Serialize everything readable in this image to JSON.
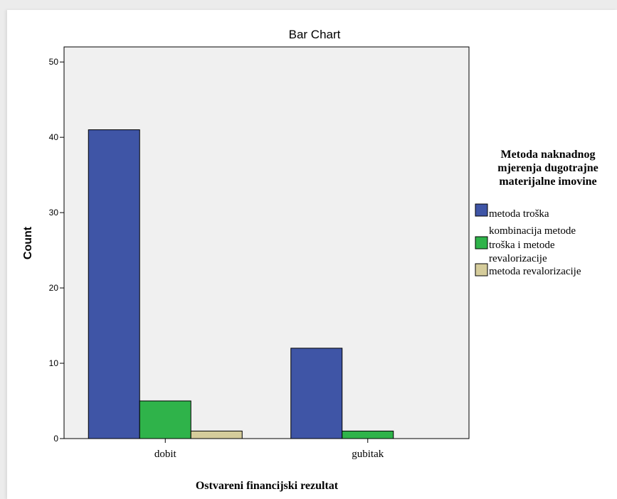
{
  "chart_data": {
    "type": "bar",
    "title": "Bar Chart",
    "xlabel": "Ostvareni financijski rezultat",
    "ylabel": "Count",
    "categories": [
      "dobit",
      "gubitak"
    ],
    "ylim": [
      0,
      52
    ],
    "yticks": [
      0,
      10,
      20,
      30,
      40,
      50
    ],
    "grid": false,
    "legend_position": "right",
    "legend_title": [
      "Metoda naknadnog",
      "mjerenja dugotrajne",
      "materijalne imovine"
    ],
    "series": [
      {
        "name": "metoda troška",
        "name_lines": [
          "metoda troška"
        ],
        "color": "#3f55a6",
        "values": [
          41,
          12
        ]
      },
      {
        "name": "kombinacija metode troška i metode revalorizacije",
        "name_lines": [
          "kombinacija metode",
          "troška i metode",
          "revalorizacije"
        ],
        "color": "#2fb34a",
        "values": [
          5,
          1
        ]
      },
      {
        "name": "metoda revalorizacije",
        "name_lines": [
          "metoda revalorizacije"
        ],
        "color": "#d5cc9b",
        "values": [
          1,
          0
        ]
      }
    ],
    "plot_background": "#f0f0f0"
  }
}
